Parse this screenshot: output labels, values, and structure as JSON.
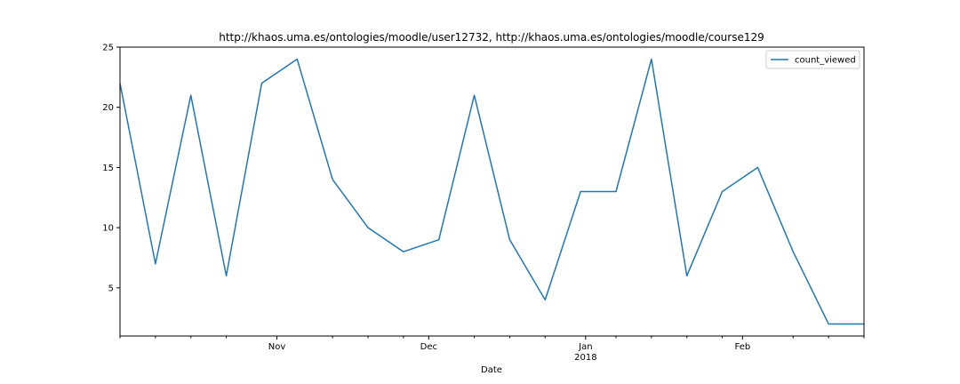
{
  "chart_data": {
    "type": "line",
    "title": "http://khaos.uma.es/ontologies/moodle/user12732, http://khaos.uma.es/ontologies/moodle/course129",
    "xlabel": "Date",
    "ylabel": "",
    "ylim": [
      1.0,
      25.0
    ],
    "y_ticks": [
      5,
      10,
      15,
      20,
      25
    ],
    "x_start": "2017-10-01",
    "x_end": "2018-02-25",
    "x": [
      "2017-10-01",
      "2017-10-08",
      "2017-10-15",
      "2017-10-22",
      "2017-10-29",
      "2017-11-05",
      "2017-11-12",
      "2017-11-19",
      "2017-11-26",
      "2017-12-03",
      "2017-12-10",
      "2017-12-17",
      "2017-12-24",
      "2017-12-31",
      "2018-01-07",
      "2018-01-14",
      "2018-01-21",
      "2018-01-28",
      "2018-02-04",
      "2018-02-11",
      "2018-02-18",
      "2018-02-25"
    ],
    "x_major_ticks": [
      {
        "date": "2017-11-01",
        "label": "Nov",
        "sublabel": ""
      },
      {
        "date": "2017-12-01",
        "label": "Dec",
        "sublabel": ""
      },
      {
        "date": "2018-01-01",
        "label": "Jan",
        "sublabel": "2018"
      },
      {
        "date": "2018-02-01",
        "label": "Feb",
        "sublabel": ""
      }
    ],
    "x_minor_ticks": [
      "2017-10-01",
      "2017-10-08",
      "2017-10-15",
      "2017-10-22",
      "2017-11-12",
      "2017-11-19",
      "2017-11-26",
      "2017-12-10",
      "2017-12-17",
      "2017-12-24",
      "2018-01-07",
      "2018-01-14",
      "2018-01-21",
      "2018-01-28",
      "2018-02-11",
      "2018-02-18",
      "2018-02-25"
    ],
    "series": [
      {
        "name": "count_viewed",
        "color": "#1f77b4",
        "values": [
          22,
          7,
          21,
          6,
          22,
          24,
          14,
          10,
          8,
          9,
          21,
          9,
          4,
          13,
          13,
          24,
          6,
          13,
          15,
          8,
          2,
          2
        ]
      }
    ],
    "legend": "top-right",
    "grid": false
  }
}
